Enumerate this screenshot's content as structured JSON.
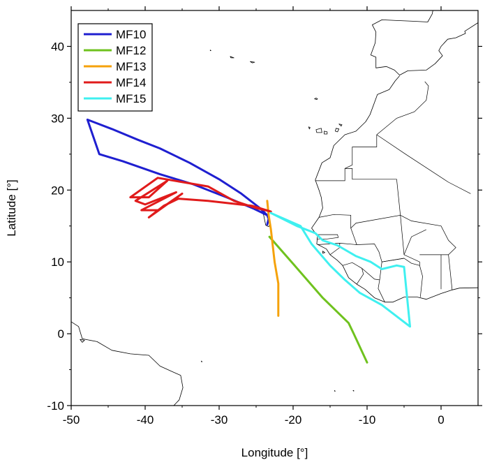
{
  "chart_data": {
    "type": "line",
    "title": "",
    "xlabel": "Longitude [°]",
    "ylabel": "Latitude [°]",
    "xlim": [
      -50,
      5
    ],
    "ylim": [
      -10,
      45
    ],
    "xticks": [
      -50,
      -40,
      -30,
      -20,
      -10,
      0
    ],
    "yticks": [
      -10,
      0,
      10,
      20,
      30,
      40
    ],
    "grid": false,
    "legend_position": "top-left",
    "series": [
      {
        "name": "MF10",
        "color": "#1f1fd0",
        "points": [
          [
            -23.5,
            16.5
          ],
          [
            -24.5,
            17.5
          ],
          [
            -27,
            19.5
          ],
          [
            -30,
            21.5
          ],
          [
            -34,
            23.8
          ],
          [
            -38,
            25.8
          ],
          [
            -41,
            27
          ],
          [
            -44.5,
            28.5
          ],
          [
            -47.8,
            29.8
          ],
          [
            -46.2,
            25
          ],
          [
            -43,
            24
          ],
          [
            -38,
            22.2
          ],
          [
            -33.5,
            20.8
          ],
          [
            -29,
            19
          ],
          [
            -25.3,
            17.4
          ],
          [
            -23.5,
            16.5
          ],
          [
            -23.3,
            16
          ],
          [
            -23.5,
            15.2
          ]
        ]
      },
      {
        "name": "MF12",
        "color": "#6fc21e",
        "points": [
          [
            -23.2,
            13.5
          ],
          [
            -19.8,
            9.5
          ],
          [
            -16,
            5
          ],
          [
            -12.5,
            1.5
          ],
          [
            -11.8,
            0
          ],
          [
            -10,
            -4
          ]
        ]
      },
      {
        "name": "MF13",
        "color": "#f5a20b",
        "points": [
          [
            -23.5,
            18.5
          ],
          [
            -23.3,
            16.5
          ],
          [
            -23,
            14.5
          ],
          [
            -22.5,
            10
          ],
          [
            -22,
            7
          ],
          [
            -22,
            2.5
          ]
        ]
      },
      {
        "name": "MF14",
        "color": "#e01b1b",
        "points": [
          [
            -23,
            17
          ],
          [
            -25.5,
            17.8
          ],
          [
            -31.5,
            18.5
          ],
          [
            -35.5,
            18.8
          ],
          [
            -37.5,
            17.8
          ],
          [
            -39.5,
            16.2
          ],
          [
            -35,
            19.5
          ],
          [
            -38.2,
            17.2
          ],
          [
            -40.5,
            17.2
          ],
          [
            -35.8,
            19.7
          ],
          [
            -40,
            18
          ],
          [
            -41.3,
            18.5
          ],
          [
            -37,
            21.3
          ],
          [
            -39.5,
            19
          ],
          [
            -42,
            19
          ],
          [
            -38.3,
            21.7
          ],
          [
            -31.5,
            20.5
          ],
          [
            -28,
            18.5
          ],
          [
            -25,
            17.5
          ],
          [
            -23,
            17
          ]
        ]
      },
      {
        "name": "MF15",
        "color": "#3ff0f0",
        "points": [
          [
            -23,
            16.8
          ],
          [
            -19.5,
            15
          ],
          [
            -17,
            14
          ],
          [
            -16,
            13
          ],
          [
            -14,
            12.3
          ],
          [
            -11.5,
            10.8
          ],
          [
            -9.5,
            10
          ],
          [
            -8,
            9
          ],
          [
            -6,
            9.5
          ],
          [
            -5,
            9.3
          ],
          [
            -4.2,
            1
          ],
          [
            -8,
            4
          ],
          [
            -11,
            5.7
          ],
          [
            -13,
            7.5
          ],
          [
            -15,
            9.5
          ],
          [
            -17.5,
            12.5
          ],
          [
            -19,
            15
          ],
          [
            -23,
            16.8
          ]
        ]
      }
    ]
  }
}
